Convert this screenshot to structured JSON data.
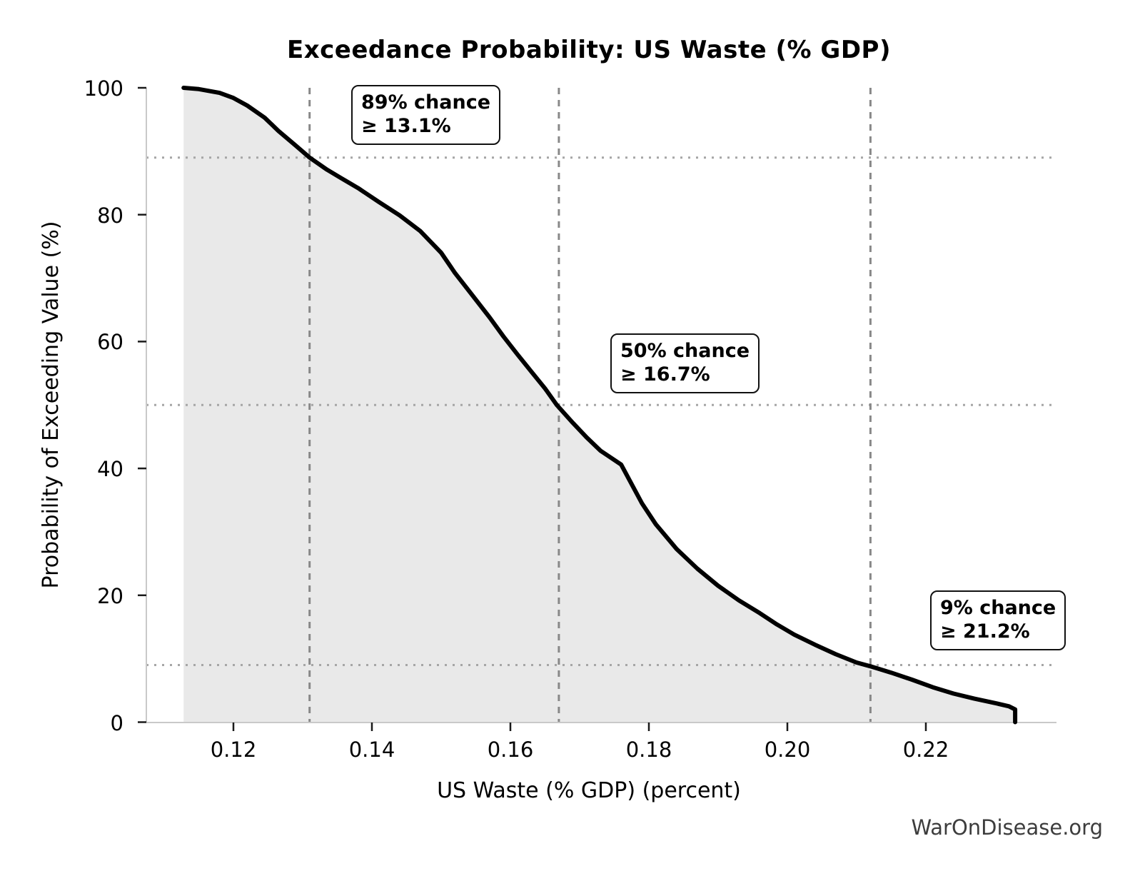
{
  "title": "Exceedance Probability: US Waste (% GDP)",
  "watermark": "WarOnDisease.org",
  "chart_data": {
    "type": "area",
    "title": "Exceedance Probability: US Waste (% GDP)",
    "xlabel": "US Waste (% GDP) (percent)",
    "ylabel": "Probability of Exceeding Value (%)",
    "xlim": [
      0.1074,
      0.2387
    ],
    "ylim": [
      0,
      100
    ],
    "x_ticks": [
      {
        "value": 0.12,
        "label": "0.12"
      },
      {
        "value": 0.14,
        "label": "0.14"
      },
      {
        "value": 0.16,
        "label": "0.16"
      },
      {
        "value": 0.18,
        "label": "0.18"
      },
      {
        "value": 0.2,
        "label": "0.20"
      },
      {
        "value": 0.22,
        "label": "0.22"
      }
    ],
    "y_ticks": [
      {
        "value": 0,
        "label": "0"
      },
      {
        "value": 20,
        "label": "20"
      },
      {
        "value": 40,
        "label": "40"
      },
      {
        "value": 60,
        "label": "60"
      },
      {
        "value": 80,
        "label": "80"
      },
      {
        "value": 100,
        "label": "100"
      }
    ],
    "grid": {
      "h_dotted_at_probability": [
        89,
        50,
        9
      ],
      "v_dashed_at_value": [
        0.131,
        0.167,
        0.212
      ]
    },
    "series": [
      {
        "name": "exceedance-curve",
        "x": [
          0.1128,
          0.115,
          0.118,
          0.12,
          0.122,
          0.1245,
          0.1265,
          0.129,
          0.131,
          0.1335,
          0.1355,
          0.138,
          0.141,
          0.144,
          0.147,
          0.15,
          0.152,
          0.1545,
          0.157,
          0.159,
          0.161,
          0.163,
          0.165,
          0.1667,
          0.169,
          0.171,
          0.173,
          0.176,
          0.179,
          0.181,
          0.184,
          0.187,
          0.19,
          0.193,
          0.196,
          0.1985,
          0.201,
          0.204,
          0.207,
          0.21,
          0.212,
          0.215,
          0.218,
          0.221,
          0.224,
          0.227,
          0.23,
          0.232,
          0.2329,
          0.2329
        ],
        "y": [
          100,
          99.8,
          99.2,
          98.4,
          97.2,
          95.3,
          93.2,
          90.9,
          89.0,
          87.1,
          85.8,
          84.2,
          82.0,
          79.9,
          77.4,
          74.0,
          70.8,
          67.3,
          63.8,
          60.8,
          58.0,
          55.3,
          52.6,
          50.0,
          47.2,
          44.9,
          42.8,
          40.6,
          34.5,
          31.2,
          27.3,
          24.2,
          21.5,
          19.2,
          17.2,
          15.4,
          13.8,
          12.2,
          10.7,
          9.4,
          8.8,
          7.8,
          6.7,
          5.5,
          4.5,
          3.7,
          3.0,
          2.5,
          2.0,
          0
        ]
      }
    ],
    "annotations": [
      {
        "line1": "89% chance",
        "line2": "≥ 13.1%",
        "at_x": 0.131,
        "at_probability": 89
      },
      {
        "line1": "50% chance",
        "line2": "≥ 16.7%",
        "at_x": 0.167,
        "at_probability": 50
      },
      {
        "line1": "9% chance",
        "line2": "≥ 21.2%",
        "at_x": 0.212,
        "at_probability": 9
      }
    ],
    "colors": {
      "curve": "#000000",
      "fill": "#e9e9e9",
      "dashed_line": "#888888",
      "dotted_line": "#a6a6a6",
      "spine": "#c9c9c9",
      "tick": "#1a1a1a",
      "watermark": "#3d3d3d"
    }
  }
}
